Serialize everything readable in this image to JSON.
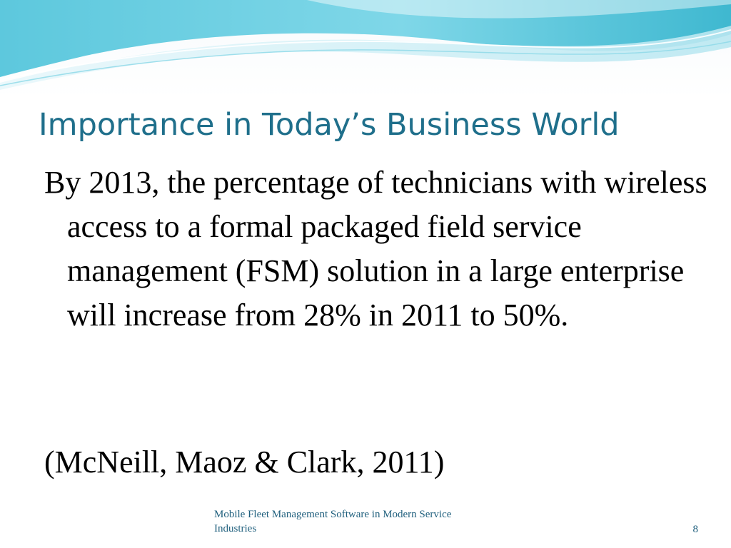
{
  "slide": {
    "title": "Importance in Today’s Business World",
    "body": "By 2013, the percentage of technicians with wireless access to a formal packaged field service management (FSM) solution in a large enterprise will increase from 28% in 2011 to 50%.",
    "citation": "(McNeill, Maoz & Clark, 2011)"
  },
  "footer": {
    "text": "Mobile Fleet Management Software in Modern Service Industries",
    "page_number": "8"
  },
  "colors": {
    "title": "#1f6f8b",
    "wave_dark": "#55c3d8",
    "wave_light": "#bfe9f2"
  }
}
